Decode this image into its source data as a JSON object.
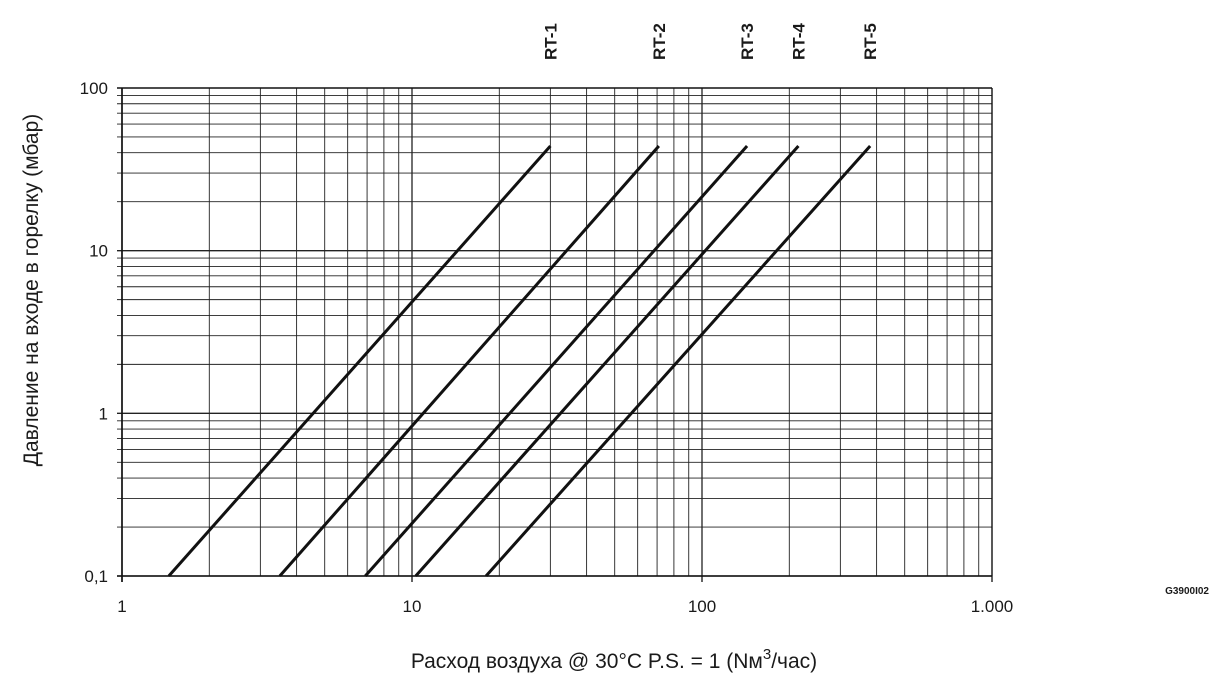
{
  "chart_data": {
    "type": "line",
    "xscale": "log",
    "yscale": "log",
    "xlim": [
      1,
      1000
    ],
    "ylim": [
      0.1,
      100
    ],
    "grid": true,
    "xlabel": "Расход воздуха @ 30°C P.S. = 1 (Nм3/час)",
    "xlabel_parts": {
      "before": "Расход воздуха @ 30°C P.S. = 1 (Nм",
      "superscript": "3",
      "after": "/час)"
    },
    "ylabel": "Давление на входе в горелку (мбар)",
    "x_tick_labels": [
      {
        "value": 1,
        "label": "1"
      },
      {
        "value": 10,
        "label": "10"
      },
      {
        "value": 100,
        "label": "100"
      },
      {
        "value": 1000,
        "label": "1.000"
      }
    ],
    "y_tick_labels": [
      {
        "value": 0.1,
        "label": "0,1"
      },
      {
        "value": 1,
        "label": "1"
      },
      {
        "value": 10,
        "label": "10"
      },
      {
        "value": 100,
        "label": "100"
      }
    ],
    "series": [
      {
        "name": "RT-1",
        "x": [
          1.45,
          30
        ],
        "y": [
          0.1,
          44
        ]
      },
      {
        "name": "RT-2",
        "x": [
          3.5,
          71
        ],
        "y": [
          0.1,
          44
        ]
      },
      {
        "name": "RT-3",
        "x": [
          6.9,
          143
        ],
        "y": [
          0.1,
          44
        ]
      },
      {
        "name": "RT-4",
        "x": [
          10.3,
          215
        ],
        "y": [
          0.1,
          44
        ]
      },
      {
        "name": "RT-5",
        "x": [
          18,
          380
        ],
        "y": [
          0.1,
          44
        ]
      }
    ],
    "series_label_x": [
      30,
      71,
      143,
      215,
      380
    ],
    "line_color": "#111111",
    "grid_color": "#222222"
  },
  "figure_code": "G3900I02"
}
